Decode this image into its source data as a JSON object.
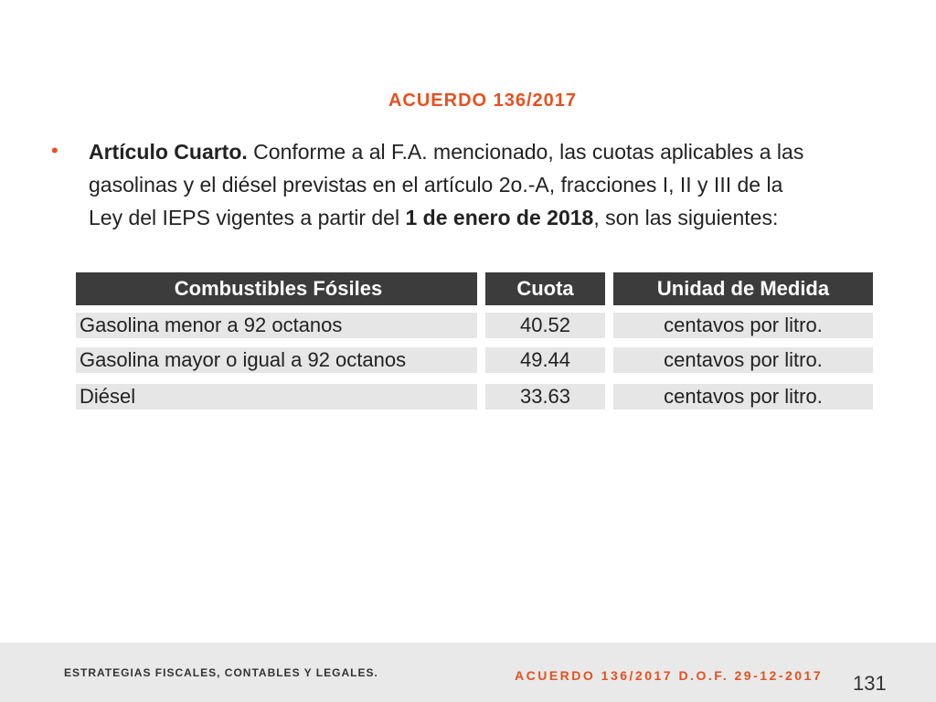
{
  "title": "ACUERDO 136/2017",
  "bullet": {
    "symbol": "•",
    "lead": "Artículo Cuarto.",
    "line1": " Conforme a al F.A. mencionado, las cuotas aplicables a las",
    "line2": "gasolinas y el diésel previstas en el artículo 2o.-A, fracciones I, II y III de la",
    "line3_pre": "Ley del IEPS vigentes a partir del ",
    "line3_bold": "1 de enero de 2018",
    "line3_post": ", son las siguientes:"
  },
  "table": {
    "headers": [
      "Combustibles Fósiles",
      "Cuota",
      "Unidad de Medida"
    ],
    "rows": [
      [
        "Gasolina menor a 92 octanos",
        "40.52",
        "centavos por litro."
      ],
      [
        "Gasolina mayor o igual a 92 octanos",
        "49.44",
        "centavos por litro."
      ],
      [
        "Diésel",
        "33.63",
        "centavos por litro."
      ]
    ]
  },
  "footer": {
    "left": "ESTRATEGIAS FISCALES, CONTABLES Y LEGALES.",
    "right": "ACUERDO 136/2017 D.O.F. 29-12-2017",
    "page": "131"
  },
  "colors": {
    "accent": "#e8501f",
    "header_bg": "#3c3c3c",
    "row_bg": "#e6e6e6",
    "footer_bg": "#e9e9e9"
  }
}
